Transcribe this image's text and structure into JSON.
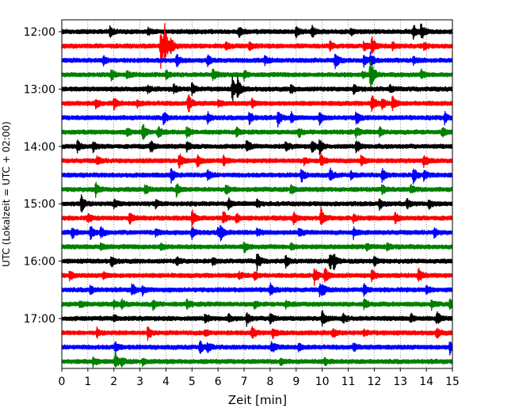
{
  "chart_data": {
    "type": "line",
    "subtype": "helicorder",
    "title": "",
    "xlabel": "Zeit  [min]",
    "ylabel": "UTC (Lokalzeit = UTC + 02:00)",
    "xlim": [
      0,
      15
    ],
    "x_ticks": [
      "0",
      "1",
      "2",
      "3",
      "4",
      "5",
      "6",
      "7",
      "8",
      "9",
      "10",
      "11",
      "12",
      "13",
      "14",
      "15"
    ],
    "y_tick_labels": [
      "12:00",
      "13:00",
      "14:00",
      "15:00",
      "16:00",
      "17:00"
    ],
    "grid": "vertical dotted",
    "trace_colors": [
      "#000000",
      "#ff0000",
      "#0000ff",
      "#008000"
    ],
    "traces": [
      {
        "start": "12:00",
        "events": [
          [
            1.85,
            0.4
          ],
          [
            3.3,
            0.3
          ],
          [
            6.8,
            0.5
          ],
          [
            9.0,
            0.5
          ],
          [
            9.6,
            0.6
          ],
          [
            11.1,
            0.3
          ],
          [
            13.5,
            0.6
          ],
          [
            13.8,
            0.8
          ]
        ]
      },
      {
        "start": "12:15",
        "events": [
          [
            3.8,
            2.2
          ],
          [
            3.95,
            1.5
          ],
          [
            4.2,
            0.6
          ],
          [
            6.3,
            0.3
          ],
          [
            7.2,
            0.4
          ],
          [
            10.3,
            0.4
          ],
          [
            11.6,
            0.4
          ],
          [
            11.9,
            0.9
          ],
          [
            12.7,
            0.3
          ],
          [
            13.9,
            0.3
          ]
        ]
      },
      {
        "start": "12:30",
        "events": [
          [
            1.6,
            0.4
          ],
          [
            4.4,
            0.6
          ],
          [
            5.6,
            0.6
          ],
          [
            7.8,
            0.4
          ],
          [
            10.5,
            0.7
          ],
          [
            11.6,
            0.5
          ],
          [
            11.85,
            0.6
          ],
          [
            13.5,
            0.3
          ]
        ]
      },
      {
        "start": "12:45",
        "events": [
          [
            1.9,
            0.5
          ],
          [
            2.5,
            0.3
          ],
          [
            4.0,
            0.4
          ],
          [
            5.8,
            0.5
          ],
          [
            7.0,
            0.4
          ],
          [
            11.55,
            0.3
          ],
          [
            11.85,
            1.8
          ],
          [
            13.8,
            0.4
          ]
        ]
      },
      {
        "start": "13:00",
        "events": [
          [
            3.3,
            0.3
          ],
          [
            4.3,
            0.4
          ],
          [
            5.0,
            0.6
          ],
          [
            6.55,
            1.1
          ],
          [
            6.75,
            0.9
          ],
          [
            8.8,
            0.4
          ],
          [
            11.2,
            0.4
          ],
          [
            12.6,
            0.3
          ]
        ]
      },
      {
        "start": "13:15",
        "events": [
          [
            1.3,
            0.5
          ],
          [
            2.0,
            0.5
          ],
          [
            2.9,
            0.3
          ],
          [
            4.85,
            1.0
          ],
          [
            6.0,
            0.3
          ],
          [
            7.3,
            0.4
          ],
          [
            11.9,
            0.9
          ],
          [
            12.3,
            0.5
          ],
          [
            12.7,
            0.6
          ]
        ]
      },
      {
        "start": "13:30",
        "events": [
          [
            3.9,
            0.6
          ],
          [
            5.6,
            0.5
          ],
          [
            7.2,
            0.6
          ],
          [
            8.3,
            0.7
          ],
          [
            8.8,
            0.5
          ],
          [
            9.9,
            0.5
          ],
          [
            11.3,
            0.7
          ],
          [
            14.7,
            0.5
          ]
        ]
      },
      {
        "start": "13:45",
        "events": [
          [
            2.5,
            0.4
          ],
          [
            3.1,
            0.8
          ],
          [
            3.7,
            0.5
          ],
          [
            4.8,
            0.6
          ],
          [
            6.7,
            0.4
          ],
          [
            9.1,
            0.4
          ],
          [
            11.3,
            0.4
          ],
          [
            12.2,
            0.4
          ],
          [
            14.6,
            0.4
          ]
        ]
      },
      {
        "start": "14:00",
        "events": [
          [
            0.6,
            0.5
          ],
          [
            1.2,
            0.5
          ],
          [
            3.4,
            0.6
          ],
          [
            4.8,
            0.5
          ],
          [
            7.1,
            0.6
          ],
          [
            8.6,
            0.4
          ],
          [
            9.6,
            0.6
          ],
          [
            9.9,
            0.6
          ],
          [
            11.3,
            0.7
          ]
        ]
      },
      {
        "start": "14:15",
        "events": [
          [
            1.35,
            0.4
          ],
          [
            4.5,
            0.8
          ],
          [
            5.2,
            0.5
          ],
          [
            6.2,
            0.5
          ],
          [
            9.3,
            0.3
          ],
          [
            9.95,
            0.6
          ],
          [
            11.5,
            0.6
          ],
          [
            13.9,
            0.5
          ]
        ]
      },
      {
        "start": "14:30",
        "events": [
          [
            4.2,
            0.6
          ],
          [
            5.6,
            0.4
          ],
          [
            9.2,
            0.6
          ],
          [
            10.3,
            0.6
          ],
          [
            11.1,
            0.3
          ],
          [
            12.3,
            0.6
          ],
          [
            13.5,
            0.8
          ],
          [
            13.9,
            0.4
          ]
        ]
      },
      {
        "start": "14:45",
        "events": [
          [
            1.3,
            0.6
          ],
          [
            3.2,
            0.4
          ],
          [
            4.4,
            0.6
          ],
          [
            6.3,
            0.4
          ],
          [
            8.8,
            0.5
          ],
          [
            12.3,
            0.4
          ],
          [
            13.4,
            0.4
          ]
        ]
      },
      {
        "start": "15:00",
        "events": [
          [
            0.75,
            0.8
          ],
          [
            2.0,
            0.4
          ],
          [
            3.6,
            0.3
          ],
          [
            6.4,
            0.5
          ],
          [
            7.5,
            0.4
          ],
          [
            12.2,
            0.5
          ],
          [
            13.25,
            0.4
          ],
          [
            14.1,
            0.4
          ]
        ]
      },
      {
        "start": "15:15",
        "events": [
          [
            1.0,
            0.4
          ],
          [
            2.6,
            0.5
          ],
          [
            5.0,
            0.8
          ],
          [
            6.2,
            0.6
          ],
          [
            6.7,
            0.4
          ],
          [
            8.9,
            0.5
          ],
          [
            9.95,
            0.9
          ],
          [
            11.2,
            0.4
          ],
          [
            12.8,
            0.5
          ]
        ]
      },
      {
        "start": "15:30",
        "events": [
          [
            0.4,
            0.5
          ],
          [
            1.1,
            0.6
          ],
          [
            1.5,
            0.5
          ],
          [
            3.6,
            0.3
          ],
          [
            5.0,
            0.6
          ],
          [
            6.0,
            0.4
          ],
          [
            6.1,
            0.6
          ],
          [
            7.5,
            0.4
          ],
          [
            9.1,
            0.4
          ],
          [
            11.2,
            0.5
          ],
          [
            14.3,
            0.4
          ]
        ]
      },
      {
        "start": "15:45",
        "events": [
          [
            1.5,
            0.4
          ],
          [
            3.8,
            0.4
          ],
          [
            7.0,
            0.5
          ],
          [
            8.8,
            0.3
          ],
          [
            11.7,
            0.3
          ],
          [
            12.5,
            0.3
          ]
        ]
      },
      {
        "start": "16:00",
        "events": [
          [
            1.9,
            0.5
          ],
          [
            4.4,
            0.4
          ],
          [
            5.8,
            0.3
          ],
          [
            7.5,
            0.8
          ],
          [
            8.6,
            0.5
          ],
          [
            10.3,
            0.8
          ],
          [
            10.45,
            0.6
          ],
          [
            12.0,
            0.4
          ]
        ]
      },
      {
        "start": "16:15",
        "events": [
          [
            0.3,
            0.4
          ],
          [
            1.6,
            0.3
          ],
          [
            6.8,
            0.3
          ],
          [
            7.4,
            0.4
          ],
          [
            9.7,
            0.8
          ],
          [
            10.1,
            0.7
          ],
          [
            11.9,
            0.5
          ],
          [
            13.7,
            0.7
          ]
        ]
      },
      {
        "start": "16:30",
        "events": [
          [
            1.1,
            0.4
          ],
          [
            2.7,
            0.6
          ],
          [
            3.1,
            0.4
          ],
          [
            8.0,
            0.6
          ],
          [
            9.9,
            0.5
          ],
          [
            10.0,
            0.4
          ],
          [
            11.6,
            0.5
          ],
          [
            14.0,
            0.4
          ]
        ]
      },
      {
        "start": "16:45",
        "events": [
          [
            0.7,
            0.3
          ],
          [
            2.0,
            0.3
          ],
          [
            2.3,
            0.4
          ],
          [
            3.5,
            0.5
          ],
          [
            4.8,
            0.4
          ],
          [
            7.4,
            0.3
          ],
          [
            8.6,
            0.3
          ],
          [
            11.6,
            0.5
          ],
          [
            14.2,
            0.4
          ],
          [
            14.9,
            0.5
          ]
        ]
      },
      {
        "start": "17:00",
        "events": [
          [
            2.0,
            0.3
          ],
          [
            5.5,
            0.5
          ],
          [
            6.4,
            0.3
          ],
          [
            7.1,
            0.6
          ],
          [
            8.0,
            0.6
          ],
          [
            10.0,
            0.8
          ],
          [
            10.8,
            0.4
          ],
          [
            13.4,
            0.4
          ],
          [
            14.4,
            0.6
          ]
        ]
      },
      {
        "start": "17:15",
        "events": [
          [
            1.35,
            0.4
          ],
          [
            3.3,
            0.6
          ],
          [
            5.5,
            0.3
          ],
          [
            7.3,
            0.6
          ],
          [
            8.1,
            0.4
          ],
          [
            10.4,
            0.4
          ],
          [
            11.6,
            0.3
          ],
          [
            14.4,
            0.5
          ]
        ]
      },
      {
        "start": "17:30",
        "events": [
          [
            2.05,
            0.5
          ],
          [
            5.3,
            0.6
          ],
          [
            5.6,
            0.4
          ],
          [
            8.05,
            0.6
          ],
          [
            9.1,
            0.3
          ],
          [
            11.2,
            0.4
          ],
          [
            14.9,
            0.6
          ]
        ]
      },
      {
        "start": "17:45",
        "events": [
          [
            1.2,
            0.4
          ],
          [
            2.05,
            0.7
          ],
          [
            2.3,
            0.3
          ],
          [
            3.1,
            0.3
          ],
          [
            8.4,
            0.3
          ],
          [
            10.1,
            0.3
          ]
        ]
      }
    ]
  }
}
